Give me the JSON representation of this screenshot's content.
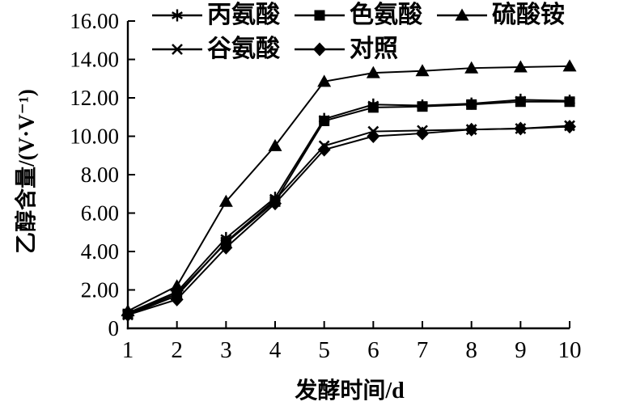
{
  "figure": {
    "background": "#ffffff",
    "ink": "#000000"
  },
  "axes": {
    "y": {
      "title": "乙醇含量/(V·V⁻¹)",
      "tick_labels": [
        "16.00",
        "14.00",
        "12.00",
        "10.00",
        "8.00",
        "6.00",
        "4.00",
        "2.00",
        "0"
      ],
      "min": 0,
      "max": 16,
      "step": 2
    },
    "x": {
      "title": "发酵时间/d",
      "tick_labels": [
        "1",
        "2",
        "3",
        "4",
        "5",
        "6",
        "7",
        "8",
        "9",
        "10"
      ],
      "min": 1,
      "max": 10,
      "step": 1
    }
  },
  "legend": {
    "rows": [
      [
        0,
        1,
        2
      ],
      [
        3,
        4
      ]
    ]
  },
  "chart_data": {
    "type": "line",
    "title": "",
    "xlabel": "发酵时间/d",
    "ylabel": "乙醇含量/(V·V⁻¹)",
    "x": [
      1,
      2,
      3,
      4,
      5,
      6,
      7,
      8,
      9,
      10
    ],
    "xlim": [
      1,
      10
    ],
    "ylim": [
      0,
      16
    ],
    "grid": false,
    "legend_position": "top",
    "series": [
      {
        "name": "丙氨酸",
        "marker": "asterisk",
        "color": "#000000",
        "values": [
          0.8,
          1.9,
          4.7,
          6.8,
          10.9,
          11.65,
          11.6,
          11.7,
          11.9,
          11.85
        ]
      },
      {
        "name": "色氨酸",
        "marker": "square",
        "color": "#000000",
        "values": [
          0.75,
          1.8,
          4.45,
          6.6,
          10.8,
          11.5,
          11.55,
          11.65,
          11.8,
          11.8
        ]
      },
      {
        "name": "硫酸铵",
        "marker": "triangle",
        "color": "#000000",
        "values": [
          0.9,
          2.2,
          6.6,
          9.5,
          12.85,
          13.3,
          13.4,
          13.55,
          13.6,
          13.65
        ]
      },
      {
        "name": "谷氨酸",
        "marker": "x",
        "color": "#000000",
        "values": [
          0.7,
          1.7,
          4.5,
          6.7,
          9.5,
          10.25,
          10.3,
          10.35,
          10.4,
          10.55
        ]
      },
      {
        "name": "对照",
        "marker": "diamond",
        "color": "#000000",
        "values": [
          0.7,
          1.5,
          4.2,
          6.5,
          9.3,
          10.0,
          10.15,
          10.35,
          10.4,
          10.5
        ]
      }
    ]
  }
}
